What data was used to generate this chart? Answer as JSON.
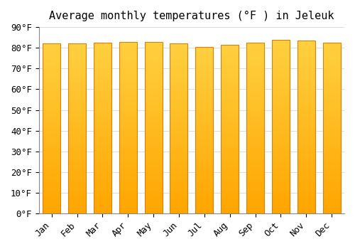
{
  "title": "Average monthly temperatures (°F ) in Jeleuk",
  "months": [
    "Jan",
    "Feb",
    "Mar",
    "Apr",
    "May",
    "Jun",
    "Jul",
    "Aug",
    "Sep",
    "Oct",
    "Nov",
    "Dec"
  ],
  "values": [
    82,
    82,
    82.5,
    83,
    83,
    82,
    80.5,
    81.5,
    82.5,
    84,
    83.5,
    82.5
  ],
  "ylim": [
    0,
    90
  ],
  "yticks": [
    0,
    10,
    20,
    30,
    40,
    50,
    60,
    70,
    80,
    90
  ],
  "bar_color_bottom": "#FFA500",
  "bar_color_top": "#FFD040",
  "bar_edge_color": "#E08000",
  "background_color": "#FFFFFF",
  "grid_color": "#DDDDDD",
  "title_fontsize": 11,
  "tick_fontsize": 9,
  "font_family": "monospace"
}
